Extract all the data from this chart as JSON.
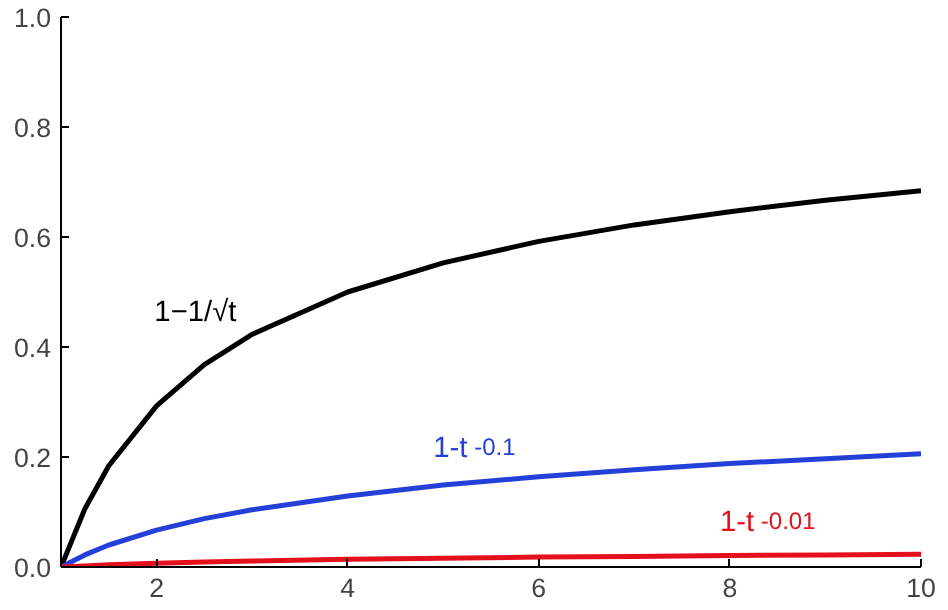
{
  "chart_data": {
    "type": "line",
    "x": [
      1,
      1.25,
      1.5,
      2,
      2.5,
      3,
      4,
      5,
      6,
      7,
      8,
      9,
      10
    ],
    "series": [
      {
        "name": "1−1/√t",
        "color": "#000000",
        "values": [
          0,
          0.106,
          0.184,
          0.293,
          0.368,
          0.423,
          0.5,
          0.553,
          0.592,
          0.622,
          0.646,
          0.667,
          0.684
        ]
      },
      {
        "name": "1-t$^{-0.1}$",
        "color": "#2440d8",
        "values": [
          0,
          0.022,
          0.04,
          0.067,
          0.088,
          0.104,
          0.129,
          0.149,
          0.164,
          0.177,
          0.188,
          0.197,
          0.206
        ]
      },
      {
        "name": "1-t$^{-0.01}$",
        "color": "#e4101c",
        "values": [
          0,
          0.002,
          0.004,
          0.007,
          0.009,
          0.011,
          0.014,
          0.016,
          0.018,
          0.019,
          0.021,
          0.022,
          0.023
        ]
      }
    ],
    "xlim": [
      1,
      10
    ],
    "ylim": [
      0,
      1
    ],
    "xticks": [
      2,
      4,
      6,
      8,
      10
    ],
    "yticks": [
      {
        "value": 0,
        "label": "0.0"
      },
      0.2,
      0.4,
      0.6,
      0.8,
      {
        "value": 1,
        "label": "1.0"
      }
    ],
    "grid": false,
    "marker": "none",
    "line_style": "solid"
  }
}
